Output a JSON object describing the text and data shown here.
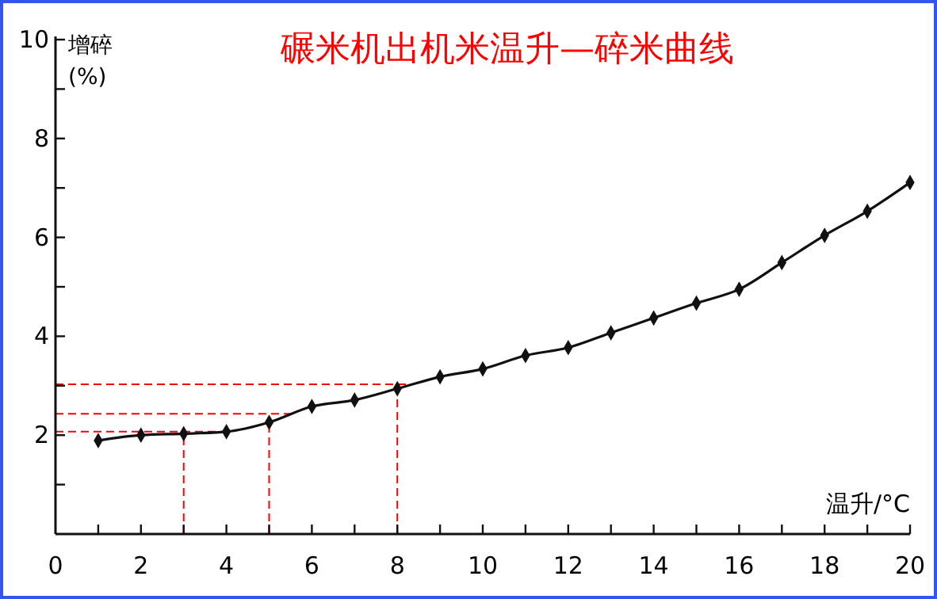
{
  "chart_data": {
    "type": "line",
    "title": "碾米机出机米温升—碎米曲线",
    "xlabel": "温升/°C",
    "ylabel": "增碎(%)",
    "x": [
      1,
      2,
      3,
      4,
      5,
      6,
      7,
      8,
      9,
      10,
      11,
      12,
      13,
      14,
      15,
      16,
      17,
      18,
      19,
      20
    ],
    "series": [
      {
        "color": "#111111",
        "values": [
          1.89,
          2.0,
          2.03,
          2.07,
          2.26,
          2.58,
          2.71,
          2.94,
          3.18,
          3.34,
          3.61,
          3.77,
          4.07,
          4.37,
          4.67,
          4.95,
          5.49,
          6.04,
          6.53,
          7.11
        ]
      }
    ],
    "xlim": [
      0,
      20
    ],
    "ylim": [
      0,
      10
    ],
    "xticks": [
      0,
      {
        "value": 1,
        "label": null
      },
      2,
      {
        "value": 3,
        "label": null
      },
      4,
      {
        "value": 5,
        "label": null
      },
      6,
      {
        "value": 7,
        "label": null
      },
      8,
      {
        "value": 9,
        "label": null
      },
      10,
      {
        "value": 11,
        "label": null
      },
      12,
      {
        "value": 13,
        "label": null
      },
      14,
      {
        "value": 15,
        "label": null
      },
      16,
      {
        "value": 17,
        "label": null
      },
      18,
      {
        "value": 19,
        "label": null
      },
      20
    ],
    "yticks": [
      {
        "value": 1,
        "label": null
      },
      2,
      {
        "value": 3,
        "label": null
      },
      4,
      {
        "value": 5,
        "label": null
      },
      6,
      {
        "value": 7,
        "label": null
      },
      8,
      {
        "value": 9,
        "label": null
      },
      10
    ],
    "ref_lines": [
      {
        "axis": "x",
        "value": 3,
        "color": "#ff0000",
        "line_style": "dashed"
      },
      {
        "axis": "x",
        "value": 5,
        "color": "#ff0000",
        "line_style": "dashed"
      },
      {
        "axis": "x",
        "value": 8,
        "color": "#ff0000",
        "line_style": "dashed"
      },
      {
        "axis": "y",
        "value": 2.07,
        "color": "#ff0000",
        "line_style": "dashed"
      },
      {
        "axis": "y",
        "value": 2.43,
        "color": "#ff0000",
        "line_style": "dashed"
      },
      {
        "axis": "y",
        "value": 3.03,
        "color": "#ff0000",
        "line_style": "dashed"
      }
    ],
    "marker": "diamond",
    "line_style": "solid"
  }
}
